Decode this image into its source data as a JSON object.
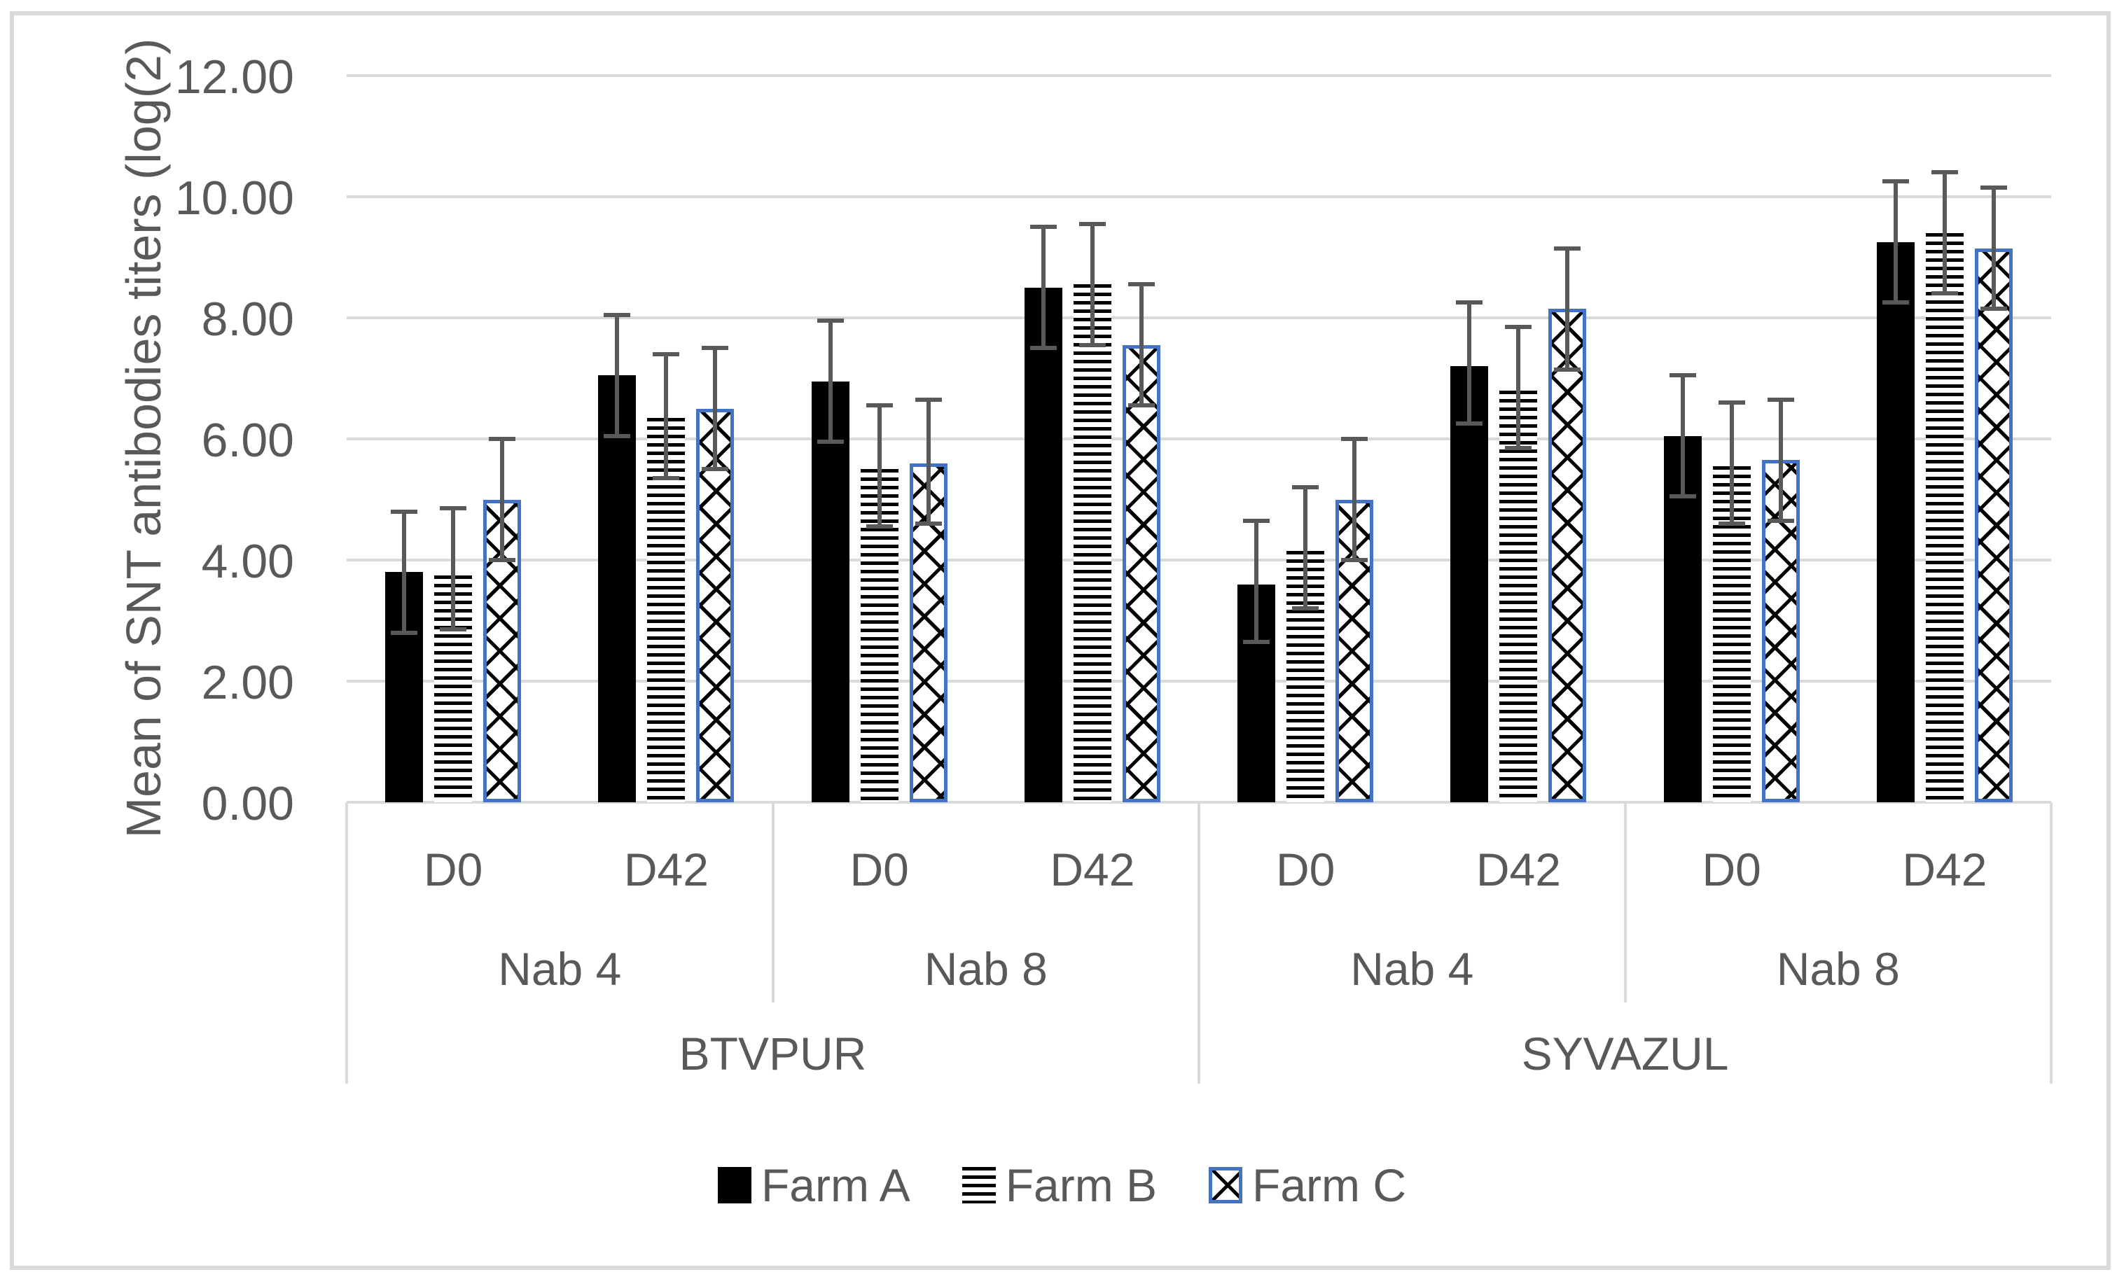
{
  "chart_data": {
    "type": "bar",
    "title": "",
    "ylabel": "Mean of SNT antibodies titers (log(2)",
    "xlabel": "",
    "ylim": [
      0,
      12
    ],
    "ytick_step": 2,
    "ytick_labels": [
      "0.00",
      "2.00",
      "4.00",
      "6.00",
      "8.00",
      "10.00",
      "12.00"
    ],
    "grid": true,
    "error_bars": true,
    "legend_position": "bottom-center",
    "group_keys": [
      "btvpur-nab4-d0",
      "btvpur-nab4-d42",
      "btvpur-nab8-d0",
      "btvpur-nab8-d42",
      "syvazul-nab4-d0",
      "syvazul-nab4-d42",
      "syvazul-nab8-d0",
      "syvazul-nab8-d42"
    ],
    "axis_levels": {
      "timepoints": [
        "D0",
        "D42",
        "D0",
        "D42",
        "D0",
        "D42",
        "D0",
        "D42"
      ],
      "nab_groups": [
        {
          "label": "Nab 4",
          "span": 2
        },
        {
          "label": "Nab 8",
          "span": 2
        },
        {
          "label": "Nab 4",
          "span": 2
        },
        {
          "label": "Nab 8",
          "span": 2
        }
      ],
      "vaccines": [
        {
          "label": "BTVPUR",
          "span": 4
        },
        {
          "label": "SYVAZUL",
          "span": 4
        }
      ]
    },
    "series": [
      {
        "name": "Farm A",
        "pattern": "solid-black",
        "values": [
          3.8,
          7.05,
          6.95,
          8.5,
          3.6,
          7.2,
          6.05,
          9.25
        ],
        "err_low": [
          2.8,
          6.05,
          5.95,
          7.5,
          2.65,
          6.25,
          5.05,
          8.25
        ],
        "err_high": [
          4.8,
          8.05,
          7.95,
          9.5,
          4.65,
          8.25,
          7.05,
          10.25
        ]
      },
      {
        "name": "Farm B",
        "pattern": "horizontal-stripes",
        "values": [
          3.75,
          6.35,
          5.5,
          8.55,
          4.15,
          6.8,
          5.55,
          9.4
        ],
        "err_low": [
          2.85,
          5.35,
          4.55,
          7.55,
          3.2,
          5.85,
          4.6,
          8.4
        ],
        "err_high": [
          4.85,
          7.4,
          6.55,
          9.55,
          5.2,
          7.85,
          6.6,
          10.4
        ]
      },
      {
        "name": "Farm C",
        "pattern": "diagonal-crosshatch-blue-border",
        "values": [
          5.0,
          6.5,
          5.6,
          7.55,
          5.0,
          8.15,
          5.65,
          9.15
        ],
        "err_low": [
          4.0,
          5.5,
          4.6,
          6.55,
          4.0,
          7.15,
          4.65,
          8.15
        ],
        "err_high": [
          6.0,
          7.5,
          6.65,
          8.55,
          6.0,
          9.15,
          6.65,
          10.15
        ]
      }
    ],
    "colors": {
      "farm_a_fill": "#000000",
      "farm_b_stripe": "#000000",
      "farm_c_border": "#4472c4",
      "error_bar": "#595959",
      "gridline": "#d9d9d9",
      "axis_text": "#595959",
      "figure_border": "#d9d9d9",
      "background": "#ffffff"
    }
  }
}
